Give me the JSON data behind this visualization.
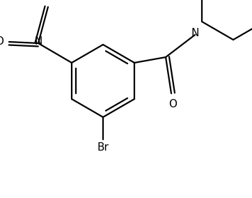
{
  "background_color": "#ffffff",
  "line_color": "#000000",
  "line_width": 1.6,
  "font_size": 10,
  "fig_width": 3.62,
  "fig_height": 2.84,
  "dpi": 100,
  "xlim": [
    0,
    3.62
  ],
  "ylim": [
    0,
    2.84
  ]
}
